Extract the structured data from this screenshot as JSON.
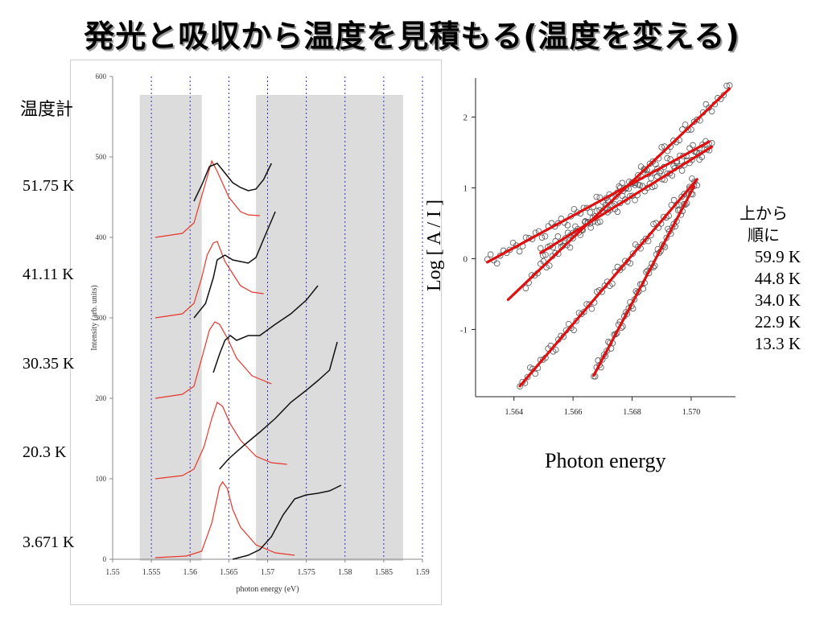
{
  "title": "発光と吸収から温度を見積もる(温度を変える)",
  "left_panel": {
    "thermometer_label": "温度計",
    "temperature_labels": [
      "51.75 K",
      "41.11 K",
      "30.35 K",
      "20.3 K",
      "3.671 K"
    ]
  },
  "right_panel": {
    "legend_heading": [
      "上から",
      "順に"
    ],
    "legend_values": [
      "59.9 K",
      "44.8 K",
      "34.0 K",
      "22.9 K",
      "13.3 K"
    ],
    "ylabel": "Log [ A / I ]",
    "xlabel": "Photon energy"
  },
  "chart_data": [
    {
      "type": "line",
      "xlabel": "photon energy (eV)",
      "ylabel": "Intensity (arb. units)",
      "xlim": [
        1.55,
        1.59
      ],
      "ylim": [
        0,
        600
      ],
      "x_ticks": [
        "1.55",
        "1.555",
        "1.56",
        "1.565",
        "1.57",
        "1.575",
        "1.58",
        "1.585",
        "1.59"
      ],
      "y_ticks": [
        "0",
        "100",
        "200",
        "300",
        "400",
        "500",
        "600"
      ],
      "dotted_verticals": [
        1.555,
        1.56,
        1.565,
        1.57,
        1.575,
        1.58,
        1.585,
        1.59
      ],
      "shaded_regions": [
        [
          1.5535,
          1.5615
        ],
        [
          1.5685,
          1.5875
        ]
      ],
      "colors": {
        "emission": "#e8362a",
        "absorption": "#111111",
        "shade": "#dcdcdc",
        "dotted": "#2f2fd0"
      },
      "series": [
        {
          "temperature": "51.75 K",
          "emission": {
            "x": [
              1.5555,
              1.559,
              1.5605,
              1.562,
              1.5628,
              1.5635,
              1.565,
              1.5665,
              1.5675,
              1.569
            ],
            "y": [
              400,
              405,
              418,
              468,
              495,
              482,
              450,
              432,
              428,
              427
            ]
          },
          "absorption": {
            "x": [
              1.5605,
              1.5615,
              1.5625,
              1.5635,
              1.5645,
              1.5655,
              1.5665,
              1.5675,
              1.5685,
              1.5695,
              1.5705
            ],
            "y": [
              445,
              465,
              488,
              492,
              480,
              468,
              462,
              458,
              460,
              472,
              492
            ]
          }
        },
        {
          "temperature": "41.11 K",
          "emission": {
            "x": [
              1.5555,
              1.559,
              1.5605,
              1.5615,
              1.5622,
              1.563,
              1.5635,
              1.5645,
              1.5665,
              1.568,
              1.5695
            ],
            "y": [
              300,
              305,
              318,
              350,
              378,
              393,
              395,
              370,
              340,
              332,
              330
            ]
          },
          "absorption": {
            "x": [
              1.5605,
              1.562,
              1.563,
              1.5635,
              1.5645,
              1.5655,
              1.5665,
              1.5675,
              1.5685,
              1.5695,
              1.571
            ],
            "y": [
              300,
              318,
              350,
              372,
              378,
              372,
              370,
              368,
              375,
              398,
              432
            ]
          }
        },
        {
          "temperature": "30.35 K",
          "emission": {
            "x": [
              1.5555,
              1.559,
              1.5605,
              1.5618,
              1.5625,
              1.5632,
              1.5638,
              1.5648,
              1.566,
              1.568,
              1.5705
            ],
            "y": [
              200,
              205,
              215,
              260,
              285,
              295,
              292,
              275,
              250,
              228,
              218
            ]
          },
          "absorption": {
            "x": [
              1.563,
              1.5638,
              1.5645,
              1.5652,
              1.566,
              1.5675,
              1.569,
              1.571,
              1.573,
              1.575,
              1.5765
            ],
            "y": [
              232,
              255,
              272,
              278,
              272,
              278,
              278,
              292,
              305,
              322,
              340
            ]
          }
        },
        {
          "temperature": "20.3 K",
          "emission": {
            "x": [
              1.5555,
              1.559,
              1.5605,
              1.5618,
              1.5628,
              1.5635,
              1.5642,
              1.5652,
              1.5665,
              1.5685,
              1.5705,
              1.5725
            ],
            "y": [
              100,
              104,
              112,
              140,
              175,
              195,
              190,
              168,
              148,
              128,
              120,
              118
            ]
          },
          "absorption": {
            "x": [
              1.5638,
              1.565,
              1.567,
              1.569,
              1.571,
              1.573,
              1.575,
              1.5765,
              1.578,
              1.579
            ],
            "y": [
              112,
              125,
              142,
              158,
              175,
              195,
              210,
              222,
              235,
              270
            ]
          }
        },
        {
          "temperature": "3.671 K",
          "emission": {
            "x": [
              1.5555,
              1.5595,
              1.5615,
              1.5628,
              1.5638,
              1.5642,
              1.5648,
              1.5655,
              1.5665,
              1.5685,
              1.571,
              1.5735
            ],
            "y": [
              2,
              4,
              10,
              45,
              90,
              96,
              88,
              62,
              40,
              18,
              8,
              5
            ]
          },
          "absorption": {
            "x": [
              1.5655,
              1.5675,
              1.569,
              1.5705,
              1.572,
              1.5735,
              1.575,
              1.5765,
              1.578,
              1.5795
            ],
            "y": [
              0,
              5,
              12,
              28,
              55,
              75,
              80,
              82,
              85,
              92
            ]
          }
        }
      ]
    },
    {
      "type": "scatter",
      "xlabel": "Photon energy",
      "ylabel": "Log [ A / I ]",
      "xlim": [
        1.5627,
        1.5715
      ],
      "ylim": [
        -1.95,
        2.55
      ],
      "x_ticks": [
        "1.564",
        "1.566",
        "1.568",
        "1.570"
      ],
      "y_ticks": [
        "-1",
        "0",
        "1",
        "2"
      ],
      "colors": {
        "points": "#555555",
        "fit": "#e01010"
      },
      "series": [
        {
          "temperature": "59.9 K",
          "x_range": [
            1.5631,
            1.5706
          ],
          "fit": [
            [
              1.5631,
              -0.05
            ],
            [
              1.5706,
              1.65
            ]
          ]
        },
        {
          "temperature": "44.8 K",
          "x_range": [
            1.5649,
            1.5707
          ],
          "fit": [
            [
              1.5649,
              0.08
            ],
            [
              1.5707,
              1.58
            ]
          ]
        },
        {
          "temperature": "34.0 K",
          "x_range": [
            1.5644,
            1.5713
          ],
          "fit": [
            [
              1.5638,
              -0.58
            ],
            [
              1.5713,
              2.4
            ]
          ]
        },
        {
          "temperature": "22.9 K",
          "x_range": [
            1.5642,
            1.5702
          ],
          "fit": [
            [
              1.5642,
              -1.8
            ],
            [
              1.5702,
              1.12
            ]
          ]
        },
        {
          "temperature": "13.3 K",
          "x_range": [
            1.5667,
            1.5701
          ],
          "fit": [
            [
              1.5667,
              -1.65
            ],
            [
              1.5701,
              1.02
            ]
          ]
        }
      ]
    }
  ]
}
